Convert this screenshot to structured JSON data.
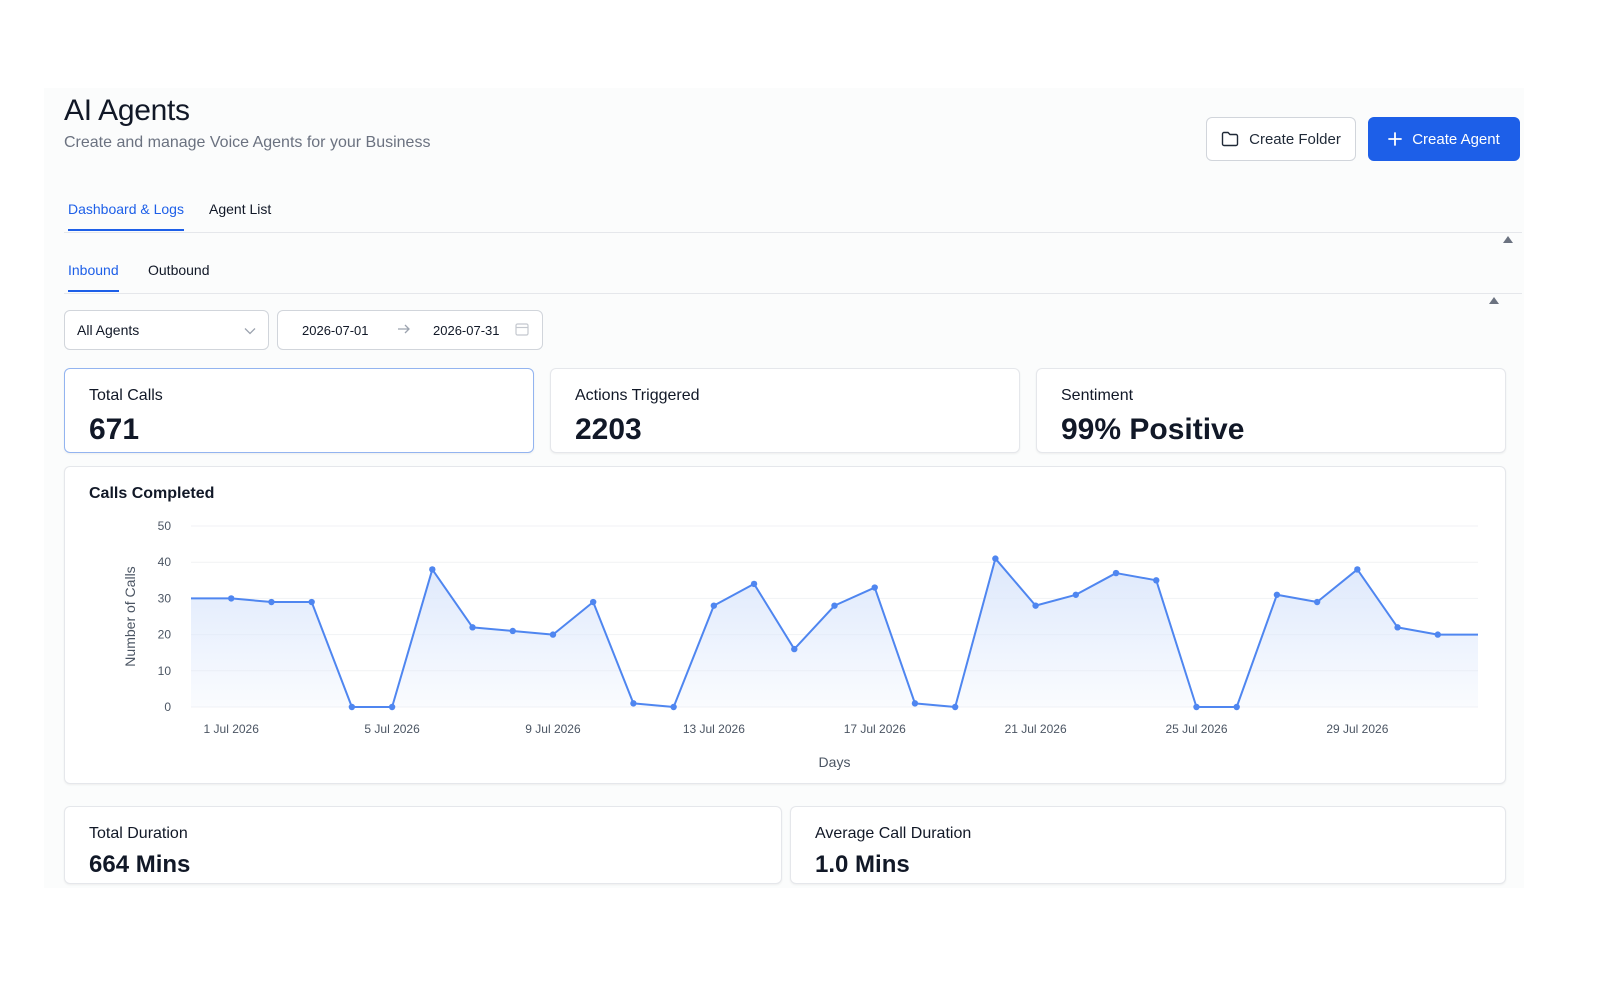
{
  "header": {
    "title": "AI Agents",
    "subtitle": "Create and manage Voice Agents for your Business",
    "create_folder_label": "Create Folder",
    "create_agent_label": "Create Agent"
  },
  "tabs": {
    "main": [
      {
        "label": "Dashboard & Logs",
        "active": true
      },
      {
        "label": "Agent List",
        "active": false
      }
    ],
    "sub": [
      {
        "label": "Inbound",
        "active": true
      },
      {
        "label": "Outbound",
        "active": false
      }
    ]
  },
  "filters": {
    "agent_select": "All Agents",
    "date_start": "2026-07-01",
    "date_end": "2026-07-31"
  },
  "stats": {
    "total_calls": {
      "label": "Total Calls",
      "value": "671"
    },
    "actions_triggered": {
      "label": "Actions Triggered",
      "value": "2203"
    },
    "sentiment": {
      "label": "Sentiment",
      "value": "99% Positive"
    },
    "total_duration": {
      "label": "Total Duration",
      "value": "664 Mins"
    },
    "average_call_duration": {
      "label": "Average Call Duration",
      "value": "1.0 Mins"
    }
  },
  "colors": {
    "accent": "#1d5fe8",
    "line": "#4f86f0",
    "area": "#dde8fc"
  },
  "chart_data": {
    "type": "area",
    "title": "Calls Completed",
    "xlabel": "Days",
    "ylabel": "Number of Calls",
    "ylim": [
      0,
      50
    ],
    "yticks": [
      0,
      10,
      20,
      30,
      40,
      50
    ],
    "x": [
      "30 Jun 2026",
      "1 Jul 2026",
      "2 Jul 2026",
      "3 Jul 2026",
      "4 Jul 2026",
      "5 Jul 2026",
      "6 Jul 2026",
      "7 Jul 2026",
      "8 Jul 2026",
      "9 Jul 2026",
      "10 Jul 2026",
      "11 Jul 2026",
      "12 Jul 2026",
      "13 Jul 2026",
      "14 Jul 2026",
      "15 Jul 2026",
      "16 Jul 2026",
      "17 Jul 2026",
      "18 Jul 2026",
      "19 Jul 2026",
      "20 Jul 2026",
      "21 Jul 2026",
      "22 Jul 2026",
      "23 Jul 2026",
      "24 Jul 2026",
      "25 Jul 2026",
      "26 Jul 2026",
      "27 Jul 2026",
      "28 Jul 2026",
      "29 Jul 2026",
      "30 Jul 2026",
      "31 Jul 2026",
      "1 Aug 2026"
    ],
    "values": [
      30,
      30,
      29,
      29,
      0,
      0,
      38,
      22,
      21,
      20,
      29,
      1,
      0,
      28,
      34,
      16,
      28,
      33,
      1,
      0,
      41,
      28,
      31,
      37,
      35,
      0,
      0,
      31,
      29,
      38,
      22,
      20,
      20
    ],
    "markers": [
      false,
      true,
      true,
      true,
      true,
      true,
      true,
      true,
      true,
      true,
      true,
      true,
      true,
      true,
      true,
      true,
      true,
      true,
      true,
      true,
      true,
      true,
      true,
      true,
      true,
      true,
      true,
      true,
      true,
      true,
      true,
      true,
      false
    ],
    "xtick_labels": [
      "1 Jul 2026",
      "5 Jul 2026",
      "9 Jul 2026",
      "13 Jul 2026",
      "17 Jul 2026",
      "21 Jul 2026",
      "25 Jul 2026",
      "29 Jul 2026"
    ],
    "grid": true,
    "legend": "none"
  }
}
